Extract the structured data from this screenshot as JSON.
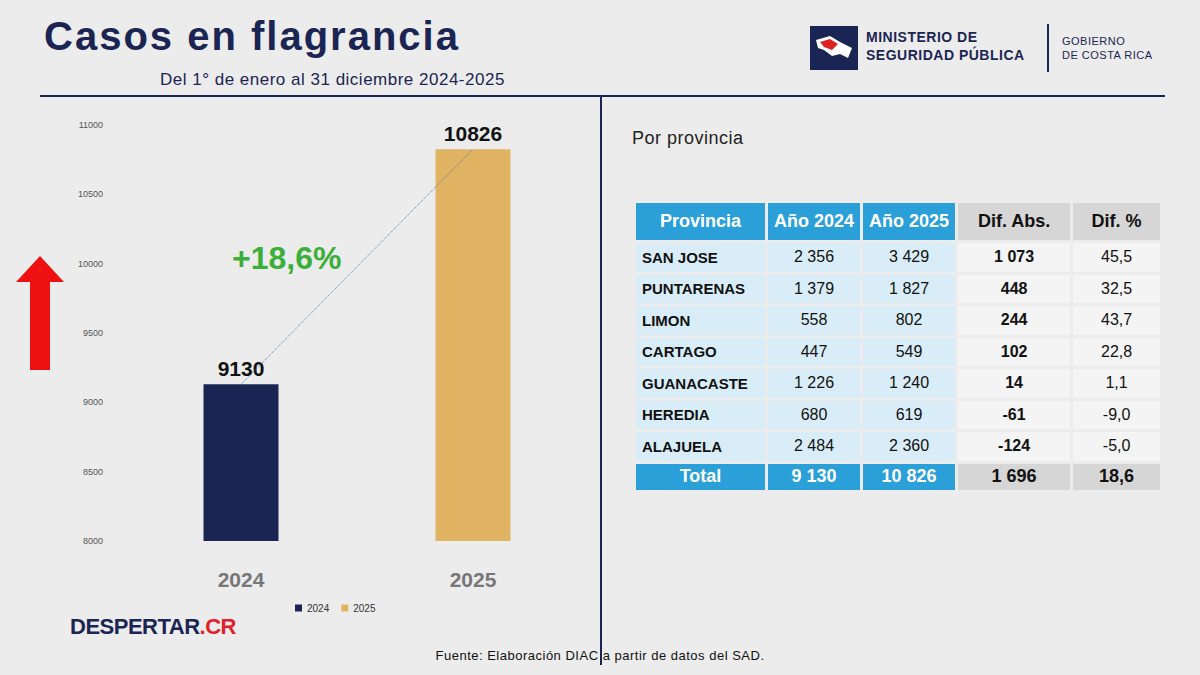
{
  "header": {
    "title": "Casos en flagrancia",
    "subtitle": "Del 1° de enero al 31 diciembre 2024-2025",
    "logo": [
      "MINISTERIO DE",
      "SEGURIDAD PÚBLICA"
    ],
    "government": [
      "GOBIERNO",
      "DE COSTA RICA"
    ]
  },
  "chart_data": {
    "type": "bar",
    "categories": [
      "2024",
      "2025"
    ],
    "series": [
      {
        "name": "2024",
        "color": "#1b2553",
        "values": [
          9130,
          null
        ]
      },
      {
        "name": "2025",
        "color": "#e0b462",
        "values": [
          null,
          10826
        ]
      }
    ],
    "ylim": [
      8000,
      11000
    ],
    "yticks": [
      8000,
      8500,
      9000,
      9500,
      10000,
      10500,
      11000
    ],
    "grid": false,
    "data_labels": true,
    "legend": "bottom",
    "annotations": [
      "+18,6%"
    ]
  },
  "table": {
    "title": "Por provincia",
    "columns": [
      "Provincia",
      "Año 2024",
      "Año 2025",
      "Dif. Abs.",
      "Dif. %"
    ],
    "rows": [
      [
        "SAN JOSE",
        "2 356",
        "3 429",
        "1 073",
        "45,5"
      ],
      [
        "PUNTARENAS",
        "1 379",
        "1 827",
        "448",
        "32,5"
      ],
      [
        "LIMON",
        "558",
        "802",
        "244",
        "43,7"
      ],
      [
        "CARTAGO",
        "447",
        "549",
        "102",
        "22,8"
      ],
      [
        "GUANACASTE",
        "1 226",
        "1 240",
        "14",
        "1,1"
      ],
      [
        "HEREDIA",
        "680",
        "619",
        "-61",
        "-9,0"
      ],
      [
        "ALAJUELA",
        "2 484",
        "2 360",
        "-124",
        "-5,0"
      ]
    ],
    "total": [
      "Total",
      "9 130",
      "10 826",
      "1 696",
      "18,6"
    ]
  },
  "brand": "DESPERTAR.CR",
  "source": "Fuente: Elaboración DIAC a partir de datos del SAD."
}
